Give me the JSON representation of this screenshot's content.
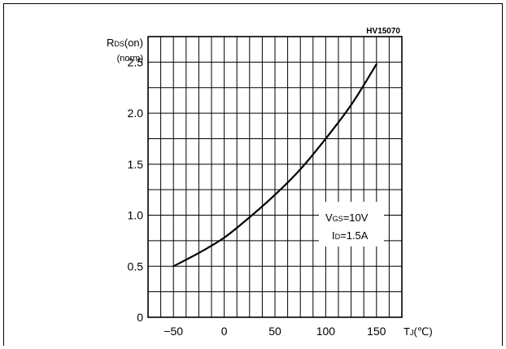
{
  "chart_data": {
    "type": "line",
    "code": "HV15070",
    "ylabel": {
      "main": "R",
      "sub": "DS",
      "tail": "(on)",
      "unit": "(norm)"
    },
    "xlabel": {
      "main": "T",
      "sub": "J",
      "tail": "(℃)"
    },
    "xticks": [
      "-50",
      "0",
      "50",
      "100",
      "150"
    ],
    "xtick_values": [
      -50,
      0,
      50,
      100,
      150
    ],
    "yticks": [
      "0",
      "0.5",
      "1.0",
      "1.5",
      "2.0",
      "2.5"
    ],
    "ytick_values": [
      0,
      0.5,
      1.0,
      1.5,
      2.0,
      2.5
    ],
    "xlim": [
      -75,
      175
    ],
    "ylim": [
      0,
      2.75
    ],
    "grid": true,
    "series": [
      {
        "x": [
          -50,
          -25,
          0,
          25,
          50,
          75,
          100,
          125,
          150
        ],
        "y": [
          0.5,
          0.63,
          0.78,
          0.98,
          1.2,
          1.45,
          1.75,
          2.08,
          2.48
        ]
      }
    ],
    "annotation": {
      "line1": {
        "main": "V",
        "sub": "GS",
        "tail": "=10V"
      },
      "line2": {
        "main": "I",
        "sub": "D",
        "tail": "=1.5A"
      }
    }
  }
}
